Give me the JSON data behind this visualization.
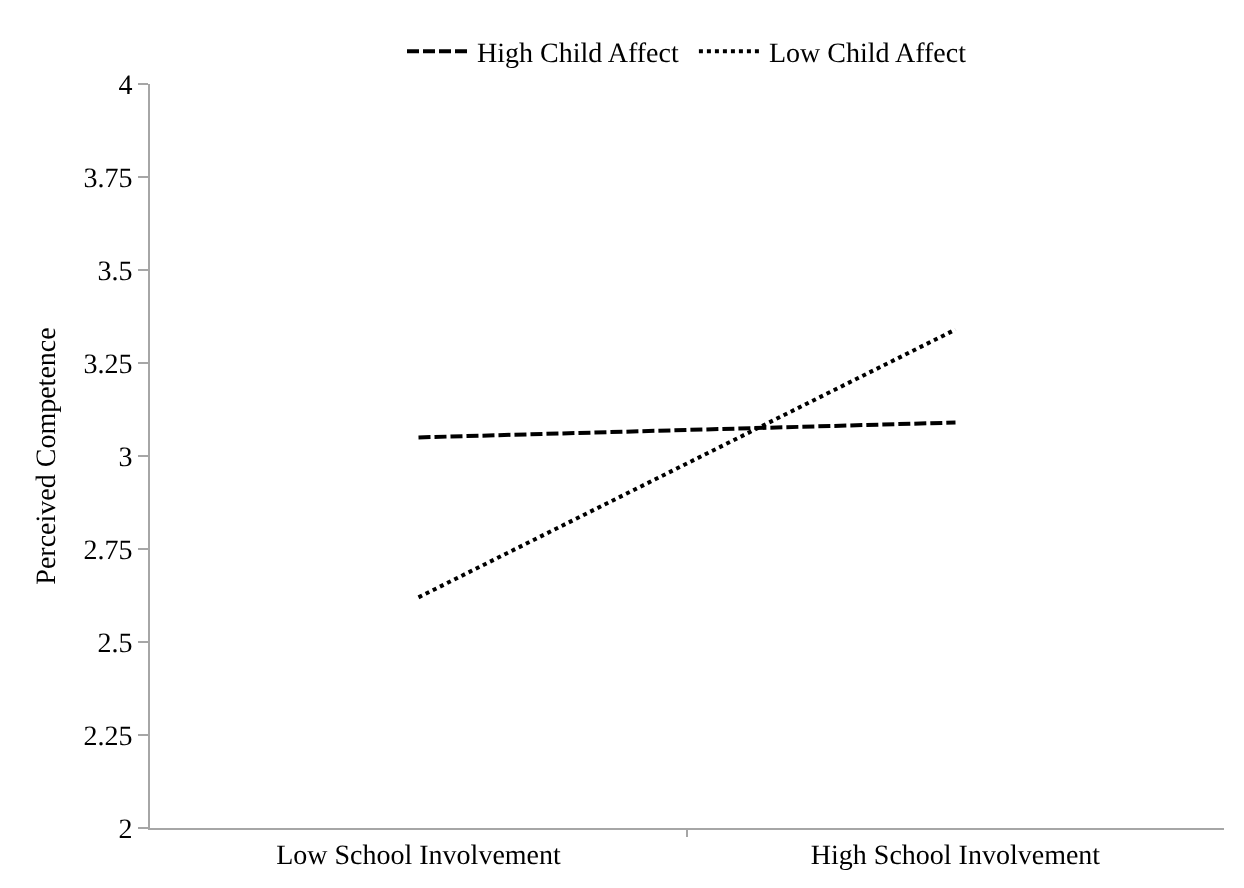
{
  "chart_data": {
    "type": "line",
    "ylabel": "Perceived Competence",
    "categories": [
      "Low School Involvement",
      "High School Involvement"
    ],
    "series": [
      {
        "name": "High Child Affect",
        "color": "#000000",
        "line_style": "dashed",
        "values": [
          3.05,
          3.09
        ]
      },
      {
        "name": "Low Child Affect",
        "color": "#000000",
        "line_style": "dotted",
        "values": [
          2.62,
          3.34
        ]
      }
    ],
    "ylim": [
      2,
      4
    ],
    "yticks": [
      2,
      2.25,
      2.5,
      2.75,
      3,
      3.25,
      3.5,
      3.75,
      4
    ],
    "grid": false,
    "legend": "top",
    "marker": "none"
  }
}
